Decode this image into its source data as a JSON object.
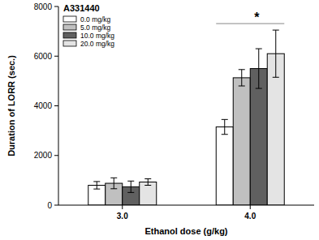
{
  "chart_data": {
    "type": "bar",
    "title": "A331440",
    "x_label": "Ethanol dose (g/kg)",
    "y_label": "Duration of LORR (sec.)",
    "categories": [
      "3.0",
      "4.0"
    ],
    "series": [
      {
        "name": "0.0 mg/kg",
        "color": "#ffffff",
        "values": [
          800,
          3150
        ],
        "errors": [
          150,
          300
        ]
      },
      {
        "name": "5.0 mg/kg",
        "color": "#c0c0c0",
        "values": [
          880,
          5130
        ],
        "errors": [
          220,
          330
        ]
      },
      {
        "name": "10.0 mg/kg",
        "color": "#606060",
        "values": [
          740,
          5500
        ],
        "errors": [
          230,
          800
        ]
      },
      {
        "name": "20.0 mg/kg",
        "color": "#e4e4e4",
        "values": [
          930,
          6100
        ],
        "errors": [
          130,
          950
        ]
      }
    ],
    "ylim": [
      0,
      8000
    ],
    "yticks": [
      0,
      2000,
      4000,
      6000,
      8000
    ],
    "grid": false,
    "legend": "upper left",
    "annotations": [
      "*"
    ]
  }
}
